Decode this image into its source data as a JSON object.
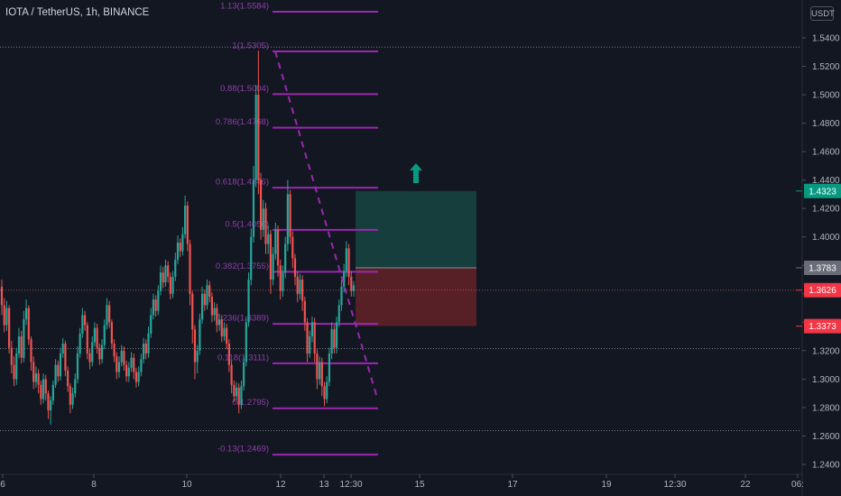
{
  "header": {
    "title": "IOTA / TetherUS, 1h, BINANCE",
    "currency": "USDT"
  },
  "colors": {
    "background": "#131722",
    "up": "#26a69a",
    "down": "#ef5350",
    "fib": "#9c27b0",
    "target_zone": "#16403f",
    "stop_zone": "#5a2127",
    "arrow": "#089981"
  },
  "chart_data": {
    "type": "candlestick",
    "title": "IOTA / TetherUS, 1h, BINANCE",
    "ylim": [
      1.235,
      1.615
    ],
    "y_ticks": [
      "1.2400",
      "1.2600",
      "1.2800",
      "1.3000",
      "1.3200",
      "1.3400",
      "1.3600",
      "1.3800",
      "1.4000",
      "1.4200",
      "1.4400",
      "1.4600",
      "1.4800",
      "1.5000",
      "1.5200",
      "1.5400"
    ],
    "x_ticks": [
      "6",
      "8",
      "10",
      "12",
      "13",
      "12:30",
      "15",
      "17",
      "19",
      "12:30",
      "22",
      "06:"
    ],
    "price_labels": [
      {
        "value": 1.4323,
        "label": "1.4323",
        "color": "#089981"
      },
      {
        "value": 1.3783,
        "label": "1.3783",
        "color": "#6a6d78"
      },
      {
        "value": 1.3626,
        "label": "1.3626",
        "color": "#f23645"
      },
      {
        "value": 1.3373,
        "label": "1.3373",
        "color": "#f23645"
      }
    ],
    "horizontal_lines": [
      1.5335,
      1.3626,
      1.3215,
      1.2638
    ],
    "fib_levels": [
      {
        "ratio": "1.13",
        "label": "1.13(1.5584)",
        "price": 1.5584
      },
      {
        "ratio": "1",
        "label": "1(1.5305)",
        "price": 1.5305
      },
      {
        "ratio": "0.88",
        "label": "0.88(1.5004)",
        "price": 1.5004
      },
      {
        "ratio": "0.786",
        "label": "0.786(1.4768)",
        "price": 1.4768
      },
      {
        "ratio": "0.618",
        "label": "0.618(1.4346)",
        "price": 1.4346
      },
      {
        "ratio": "0.5",
        "label": "0.5(1.4050)",
        "price": 1.405
      },
      {
        "ratio": "0.382",
        "label": "0.382(1.3755)",
        "price": 1.3755
      },
      {
        "ratio": "0.236",
        "label": "0.236(1.3389)",
        "price": 1.3389
      },
      {
        "ratio": "0.118",
        "label": "0.118(1.3111)",
        "price": 1.3111
      },
      {
        "ratio": "0",
        "label": "0(1.2795)",
        "price": 1.2795
      },
      {
        "ratio": "-0.13",
        "label": "-0.13(1.2469)",
        "price": 1.2469
      }
    ],
    "position": {
      "entry": 1.3783,
      "target": 1.4323,
      "stop": 1.3373
    },
    "trendline": {
      "from_price": 1.5305,
      "to_price": 1.2868
    },
    "candles": [
      [
        1.365,
        1.352,
        1.37,
        1.345
      ],
      [
        1.352,
        1.338,
        1.357,
        1.333
      ],
      [
        1.338,
        1.35,
        1.355,
        1.334
      ],
      [
        1.35,
        1.322,
        1.352,
        1.318
      ],
      [
        1.322,
        1.31,
        1.327,
        1.304
      ],
      [
        1.31,
        1.3,
        1.316,
        1.295
      ],
      [
        1.3,
        1.318,
        1.322,
        1.296
      ],
      [
        1.318,
        1.33,
        1.336,
        1.315
      ],
      [
        1.33,
        1.315,
        1.334,
        1.311
      ],
      [
        1.315,
        1.342,
        1.348,
        1.312
      ],
      [
        1.342,
        1.35,
        1.356,
        1.338
      ],
      [
        1.35,
        1.328,
        1.352,
        1.324
      ],
      [
        1.328,
        1.312,
        1.33,
        1.306
      ],
      [
        1.312,
        1.298,
        1.316,
        1.293
      ],
      [
        1.298,
        1.304,
        1.309,
        1.294
      ],
      [
        1.304,
        1.296,
        1.307,
        1.29
      ],
      [
        1.296,
        1.286,
        1.299,
        1.282
      ],
      [
        1.286,
        1.3,
        1.304,
        1.283
      ],
      [
        1.3,
        1.29,
        1.303,
        1.285
      ],
      [
        1.29,
        1.278,
        1.292,
        1.272
      ],
      [
        1.278,
        1.285,
        1.288,
        1.268
      ],
      [
        1.285,
        1.296,
        1.299,
        1.282
      ],
      [
        1.296,
        1.31,
        1.314,
        1.294
      ],
      [
        1.31,
        1.302,
        1.313,
        1.298
      ],
      [
        1.302,
        1.318,
        1.322,
        1.299
      ],
      [
        1.318,
        1.325,
        1.329,
        1.315
      ],
      [
        1.325,
        1.306,
        1.327,
        1.302
      ],
      [
        1.306,
        1.295,
        1.309,
        1.291
      ],
      [
        1.295,
        1.282,
        1.297,
        1.276
      ],
      [
        1.282,
        1.29,
        1.294,
        1.279
      ],
      [
        1.29,
        1.3,
        1.304,
        1.287
      ],
      [
        1.3,
        1.318,
        1.323,
        1.297
      ],
      [
        1.318,
        1.332,
        1.336,
        1.315
      ],
      [
        1.332,
        1.345,
        1.35,
        1.329
      ],
      [
        1.345,
        1.338,
        1.348,
        1.334
      ],
      [
        1.338,
        1.318,
        1.34,
        1.314
      ],
      [
        1.318,
        1.312,
        1.321,
        1.307
      ],
      [
        1.312,
        1.326,
        1.33,
        1.309
      ],
      [
        1.326,
        1.336,
        1.34,
        1.323
      ],
      [
        1.336,
        1.322,
        1.339,
        1.318
      ],
      [
        1.322,
        1.314,
        1.325,
        1.31
      ],
      [
        1.314,
        1.324,
        1.328,
        1.311
      ],
      [
        1.324,
        1.338,
        1.342,
        1.321
      ],
      [
        1.338,
        1.352,
        1.357,
        1.335
      ],
      [
        1.352,
        1.34,
        1.355,
        1.336
      ],
      [
        1.34,
        1.325,
        1.342,
        1.321
      ],
      [
        1.325,
        1.316,
        1.328,
        1.312
      ],
      [
        1.316,
        1.305,
        1.319,
        1.3
      ],
      [
        1.305,
        1.312,
        1.316,
        1.301
      ],
      [
        1.312,
        1.32,
        1.324,
        1.309
      ],
      [
        1.32,
        1.31,
        1.323,
        1.306
      ],
      [
        1.31,
        1.302,
        1.313,
        1.298
      ],
      [
        1.302,
        1.308,
        1.312,
        1.298
      ],
      [
        1.308,
        1.315,
        1.319,
        1.305
      ],
      [
        1.315,
        1.305,
        1.318,
        1.3
      ],
      [
        1.305,
        1.298,
        1.308,
        1.294
      ],
      [
        1.298,
        1.305,
        1.309,
        1.295
      ],
      [
        1.305,
        1.314,
        1.318,
        1.302
      ],
      [
        1.314,
        1.325,
        1.329,
        1.311
      ],
      [
        1.325,
        1.318,
        1.328,
        1.314
      ],
      [
        1.318,
        1.332,
        1.337,
        1.315
      ],
      [
        1.332,
        1.345,
        1.35,
        1.329
      ],
      [
        1.345,
        1.356,
        1.36,
        1.342
      ],
      [
        1.356,
        1.348,
        1.359,
        1.344
      ],
      [
        1.348,
        1.362,
        1.366,
        1.345
      ],
      [
        1.362,
        1.375,
        1.38,
        1.359
      ],
      [
        1.375,
        1.368,
        1.379,
        1.364
      ],
      [
        1.368,
        1.38,
        1.384,
        1.365
      ],
      [
        1.38,
        1.372,
        1.383,
        1.368
      ],
      [
        1.372,
        1.36,
        1.375,
        1.356
      ],
      [
        1.36,
        1.372,
        1.376,
        1.357
      ],
      [
        1.372,
        1.384,
        1.389,
        1.369
      ],
      [
        1.384,
        1.396,
        1.401,
        1.381
      ],
      [
        1.396,
        1.39,
        1.399,
        1.386
      ],
      [
        1.39,
        1.402,
        1.407,
        1.387
      ],
      [
        1.402,
        1.422,
        1.429,
        1.399
      ],
      [
        1.422,
        1.395,
        1.425,
        1.39
      ],
      [
        1.395,
        1.36,
        1.398,
        1.352
      ],
      [
        1.36,
        1.335,
        1.362,
        1.325
      ],
      [
        1.335,
        1.312,
        1.338,
        1.3
      ],
      [
        1.312,
        1.32,
        1.324,
        1.304
      ],
      [
        1.32,
        1.342,
        1.346,
        1.317
      ],
      [
        1.342,
        1.36,
        1.365,
        1.339
      ],
      [
        1.36,
        1.352,
        1.363,
        1.348
      ],
      [
        1.352,
        1.366,
        1.37,
        1.349
      ],
      [
        1.366,
        1.358,
        1.369,
        1.354
      ],
      [
        1.358,
        1.345,
        1.361,
        1.34
      ],
      [
        1.345,
        1.35,
        1.354,
        1.341
      ],
      [
        1.35,
        1.338,
        1.353,
        1.333
      ],
      [
        1.338,
        1.342,
        1.346,
        1.334
      ],
      [
        1.342,
        1.33,
        1.345,
        1.326
      ],
      [
        1.33,
        1.336,
        1.34,
        1.327
      ],
      [
        1.336,
        1.325,
        1.339,
        1.321
      ],
      [
        1.325,
        1.31,
        1.328,
        1.305
      ],
      [
        1.31,
        1.296,
        1.313,
        1.29
      ],
      [
        1.296,
        1.288,
        1.299,
        1.284
      ],
      [
        1.288,
        1.294,
        1.298,
        1.285
      ],
      [
        1.294,
        1.282,
        1.297,
        1.276
      ],
      [
        1.282,
        1.295,
        1.299,
        1.279
      ],
      [
        1.295,
        1.312,
        1.316,
        1.292
      ],
      [
        1.312,
        1.34,
        1.344,
        1.309
      ],
      [
        1.34,
        1.37,
        1.375,
        1.337
      ],
      [
        1.37,
        1.4,
        1.406,
        1.366
      ],
      [
        1.4,
        1.44,
        1.45,
        1.396
      ],
      [
        1.44,
        1.5,
        1.507,
        1.435
      ],
      [
        1.5,
        1.44,
        1.531,
        1.43
      ],
      [
        1.44,
        1.405,
        1.445,
        1.398
      ],
      [
        1.405,
        1.42,
        1.426,
        1.4
      ],
      [
        1.42,
        1.395,
        1.424,
        1.388
      ],
      [
        1.395,
        1.402,
        1.408,
        1.388
      ],
      [
        1.402,
        1.37,
        1.405,
        1.36
      ],
      [
        1.37,
        1.388,
        1.393,
        1.366
      ],
      [
        1.388,
        1.405,
        1.41,
        1.384
      ],
      [
        1.405,
        1.38,
        1.408,
        1.372
      ],
      [
        1.38,
        1.362,
        1.384,
        1.356
      ],
      [
        1.362,
        1.375,
        1.38,
        1.358
      ],
      [
        1.375,
        1.395,
        1.4,
        1.371
      ],
      [
        1.395,
        1.43,
        1.44,
        1.39
      ],
      [
        1.43,
        1.4,
        1.433,
        1.395
      ],
      [
        1.4,
        1.385,
        1.404,
        1.378
      ],
      [
        1.385,
        1.372,
        1.388,
        1.366
      ],
      [
        1.372,
        1.36,
        1.376,
        1.354
      ],
      [
        1.36,
        1.37,
        1.374,
        1.356
      ],
      [
        1.37,
        1.355,
        1.373,
        1.348
      ],
      [
        1.355,
        1.34,
        1.358,
        1.334
      ],
      [
        1.34,
        1.318,
        1.343,
        1.312
      ],
      [
        1.318,
        1.33,
        1.334,
        1.315
      ],
      [
        1.33,
        1.34,
        1.344,
        1.326
      ],
      [
        1.34,
        1.318,
        1.343,
        1.312
      ],
      [
        1.318,
        1.3,
        1.321,
        1.293
      ],
      [
        1.3,
        1.312,
        1.316,
        1.296
      ],
      [
        1.312,
        1.295,
        1.315,
        1.288
      ],
      [
        1.295,
        1.286,
        1.298,
        1.281
      ],
      [
        1.286,
        1.298,
        1.302,
        1.283
      ],
      [
        1.298,
        1.318,
        1.322,
        1.295
      ],
      [
        1.318,
        1.335,
        1.34,
        1.314
      ],
      [
        1.335,
        1.322,
        1.338,
        1.318
      ],
      [
        1.322,
        1.34,
        1.344,
        1.318
      ],
      [
        1.34,
        1.352,
        1.356,
        1.337
      ],
      [
        1.352,
        1.365,
        1.37,
        1.348
      ],
      [
        1.365,
        1.376,
        1.381,
        1.361
      ],
      [
        1.376,
        1.392,
        1.397,
        1.372
      ],
      [
        1.392,
        1.372,
        1.395,
        1.366
      ],
      [
        1.372,
        1.362,
        1.376,
        1.358
      ],
      [
        1.362,
        1.366,
        1.369,
        1.358
      ]
    ]
  }
}
